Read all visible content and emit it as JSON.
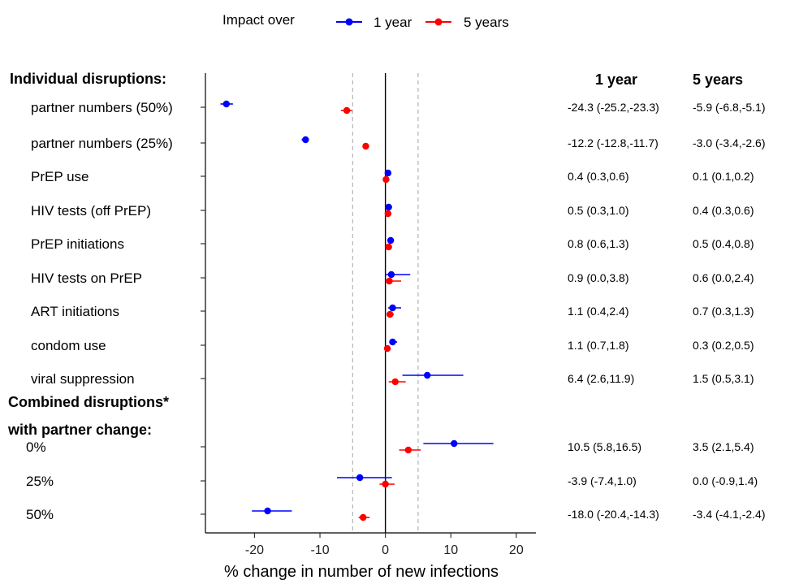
{
  "legend": {
    "title": "Impact over",
    "items": [
      {
        "label": "1 year",
        "color": "#0000ff"
      },
      {
        "label": "5 years",
        "color": "#ff0000"
      }
    ]
  },
  "column_headers": {
    "one_year": "1 year",
    "five_years": "5 years"
  },
  "chart_data": {
    "type": "scatter",
    "subtype": "forest-plot",
    "xlabel": "% change in number of new infections",
    "xlim": [
      -27.5,
      23
    ],
    "xticks": [
      -20,
      -10,
      0,
      10,
      20
    ],
    "reference_lines": {
      "solid": [
        0
      ],
      "dashed": [
        -5,
        5
      ]
    },
    "groups": [
      {
        "heading": "Individual disruptions:",
        "heading_lines": [
          "Individual disruptions:"
        ]
      },
      {
        "heading": "Combined disruptions* with partner change:",
        "heading_lines": [
          "Combined disruptions*",
          "with partner change:"
        ]
      }
    ],
    "series": [
      {
        "name": "1 year",
        "color": "#0000ff"
      },
      {
        "name": "5 years",
        "color": "#ff0000"
      }
    ],
    "rows": [
      {
        "group": 0,
        "label": "partner numbers (50%)",
        "y1": {
          "est": -24.3,
          "lo": -25.2,
          "hi": -23.3
        },
        "y5": {
          "est": -5.9,
          "lo": -6.8,
          "hi": -5.1
        },
        "text1": "-24.3 (-25.2,-23.3)",
        "text5": "-5.9 (-6.8,-5.1)"
      },
      {
        "group": 0,
        "label": "partner numbers (25%)",
        "y1": {
          "est": -12.2,
          "lo": -12.8,
          "hi": -11.7
        },
        "y5": {
          "est": -3.0,
          "lo": -3.4,
          "hi": -2.6
        },
        "text1": "-12.2 (-12.8,-11.7)",
        "text5": "-3.0 (-3.4,-2.6)"
      },
      {
        "group": 0,
        "label": "PrEP use",
        "y1": {
          "est": 0.4,
          "lo": 0.3,
          "hi": 0.6
        },
        "y5": {
          "est": 0.1,
          "lo": 0.1,
          "hi": 0.2
        },
        "text1": "0.4 (0.3,0.6)",
        "text5": "0.1 (0.1,0.2)"
      },
      {
        "group": 0,
        "label": "HIV tests (off PrEP)",
        "y1": {
          "est": 0.5,
          "lo": 0.3,
          "hi": 1.0
        },
        "y5": {
          "est": 0.4,
          "lo": 0.3,
          "hi": 0.6
        },
        "text1": "0.5 (0.3,1.0)",
        "text5": "0.4 (0.3,0.6)"
      },
      {
        "group": 0,
        "label": "PrEP initiations",
        "y1": {
          "est": 0.8,
          "lo": 0.6,
          "hi": 1.3
        },
        "y5": {
          "est": 0.5,
          "lo": 0.4,
          "hi": 0.8
        },
        "text1": "0.8 (0.6,1.3)",
        "text5": "0.5 (0.4,0.8)"
      },
      {
        "group": 0,
        "label": "HIV tests on PrEP",
        "y1": {
          "est": 0.9,
          "lo": 0.0,
          "hi": 3.8
        },
        "y5": {
          "est": 0.6,
          "lo": 0.0,
          "hi": 2.4
        },
        "text1": "0.9 (0.0,3.8)",
        "text5": "0.6 (0.0,2.4)"
      },
      {
        "group": 0,
        "label": "ART initiations",
        "y1": {
          "est": 1.1,
          "lo": 0.4,
          "hi": 2.4
        },
        "y5": {
          "est": 0.7,
          "lo": 0.3,
          "hi": 1.3
        },
        "text1": "1.1 (0.4,2.4)",
        "text5": "0.7 (0.3,1.3)"
      },
      {
        "group": 0,
        "label": "condom use",
        "y1": {
          "est": 1.1,
          "lo": 0.7,
          "hi": 1.8
        },
        "y5": {
          "est": 0.3,
          "lo": 0.2,
          "hi": 0.5
        },
        "text1": "1.1 (0.7,1.8)",
        "text5": "0.3 (0.2,0.5)"
      },
      {
        "group": 0,
        "label": "viral suppression",
        "y1": {
          "est": 6.4,
          "lo": 2.6,
          "hi": 11.9
        },
        "y5": {
          "est": 1.5,
          "lo": 0.5,
          "hi": 3.1
        },
        "text1": "6.4 (2.6,11.9)",
        "text5": "1.5 (0.5,3.1)"
      },
      {
        "group": 1,
        "label": "0%",
        "y1": {
          "est": 10.5,
          "lo": 5.8,
          "hi": 16.5
        },
        "y5": {
          "est": 3.5,
          "lo": 2.1,
          "hi": 5.4
        },
        "text1": "10.5 (5.8,16.5)",
        "text5": "3.5 (2.1,5.4)"
      },
      {
        "group": 1,
        "label": "25%",
        "y1": {
          "est": -3.9,
          "lo": -7.4,
          "hi": 1.0
        },
        "y5": {
          "est": 0.0,
          "lo": -0.9,
          "hi": 1.4
        },
        "text1": "-3.9 (-7.4,1.0)",
        "text5": "0.0 (-0.9,1.4)"
      },
      {
        "group": 1,
        "label": "50%",
        "y1": {
          "est": -18.0,
          "lo": -20.4,
          "hi": -14.3
        },
        "y5": {
          "est": -3.4,
          "lo": -4.1,
          "hi": -2.4
        },
        "text1": "-18.0 (-20.4,-14.3)",
        "text5": "-3.4 (-4.1,-2.4)"
      }
    ]
  }
}
